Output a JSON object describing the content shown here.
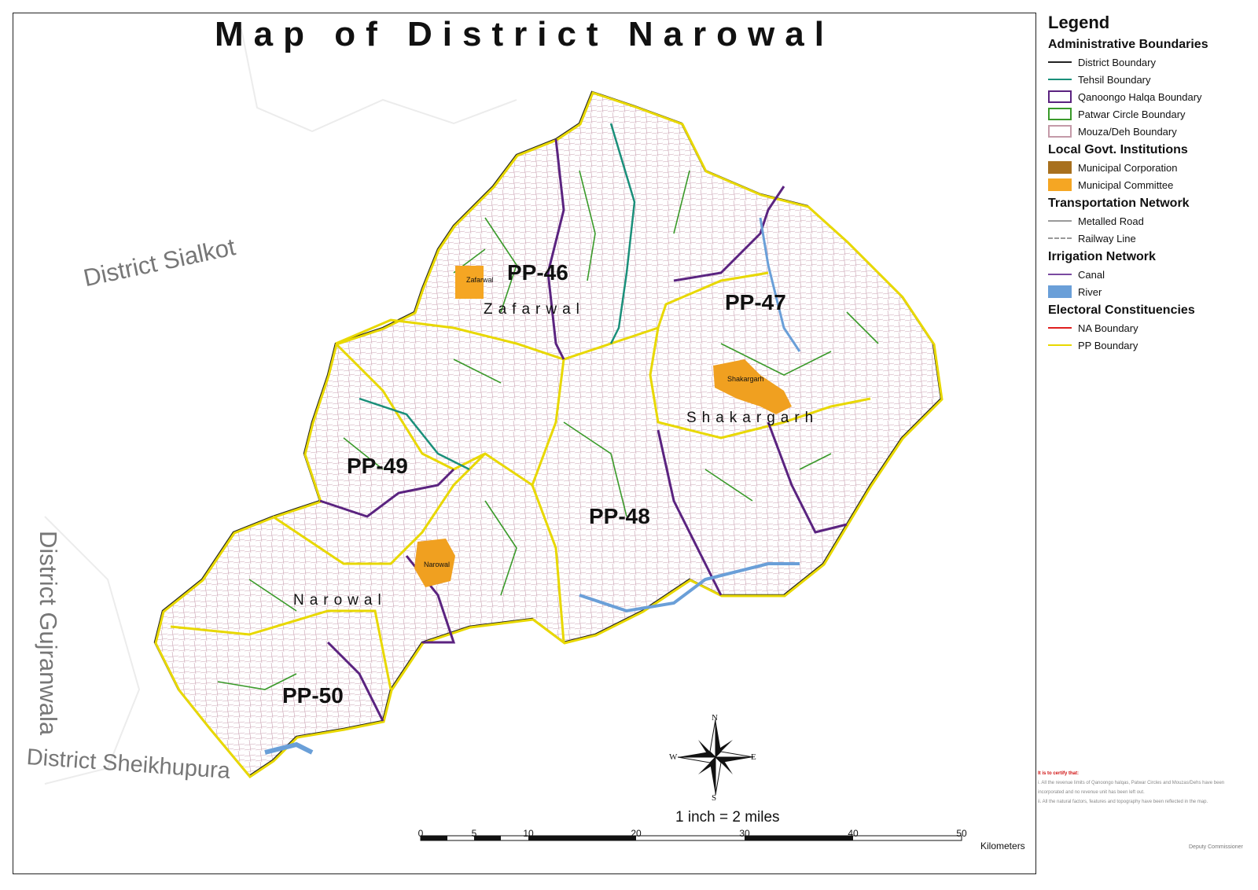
{
  "map": {
    "title": "Map of District Narowal",
    "neighbor_districts": [
      "District Sialkot",
      "District Gujranwala",
      "District Sheikhupura"
    ],
    "constituencies": [
      "PP-46",
      "PP-47",
      "PP-48",
      "PP-49",
      "PP-50"
    ],
    "tehsils": [
      "Zafarwal",
      "Shakargarh",
      "Narowal"
    ],
    "towns": [
      "Zafarwal",
      "Shakargarh",
      "Narowal"
    ],
    "scale_text": "1 inch = 2 miles",
    "scale_ticks": [
      "0",
      "5",
      "10",
      "20",
      "30",
      "40",
      "50"
    ],
    "scale_unit": "Kilometers",
    "compass": {
      "n": "N",
      "s": "S",
      "e": "E",
      "w": "W"
    }
  },
  "legend": {
    "title": "Legend",
    "sections": [
      {
        "heading": "Administrative Boundaries",
        "items": [
          {
            "label": "District Boundary",
            "symbol": "line",
            "color": "#222222"
          },
          {
            "label": "Tehsil Boundary",
            "symbol": "line",
            "color": "#1a8f7a"
          },
          {
            "label": "Qanoongo Halqa Boundary",
            "symbol": "box",
            "color": "#5b2380"
          },
          {
            "label": "Patwar Circle Boundary",
            "symbol": "box",
            "color": "#3a9a2a"
          },
          {
            "label": "Mouza/Deh Boundary",
            "symbol": "box",
            "color": "#c49aa8"
          }
        ]
      },
      {
        "heading": "Local Govt. Institutions",
        "items": [
          {
            "label": "Municipal Corporation",
            "symbol": "fill",
            "color": "#a8701e"
          },
          {
            "label": "Municipal Committee",
            "symbol": "fill",
            "color": "#f5a623"
          }
        ]
      },
      {
        "heading": "Transportation Network",
        "items": [
          {
            "label": "Metalled Road",
            "symbol": "line",
            "color": "#999999"
          },
          {
            "label": "Railway Line",
            "symbol": "dash",
            "color": "#999999"
          }
        ]
      },
      {
        "heading": "Irrigation Network",
        "items": [
          {
            "label": "Canal",
            "symbol": "line",
            "color": "#7a4aa0"
          },
          {
            "label": "River",
            "symbol": "fill",
            "color": "#6a9fd8"
          }
        ]
      },
      {
        "heading": "Electoral Constituencies",
        "items": [
          {
            "label": "NA Boundary",
            "symbol": "line",
            "color": "#e02020"
          },
          {
            "label": "PP Boundary",
            "symbol": "line",
            "color": "#e8d800"
          }
        ]
      }
    ]
  },
  "certification": {
    "title": "It is to certify that:",
    "lines": [
      "i.  All the revenue limits of Qanoongo halqas, Patwar Circles and Mouzas/Dehs have been incorporated and no revenue unit has been left out.",
      "ii. All the natural factors, features and topography have been reflected in the map."
    ],
    "signatory": "Deputy Commissioner"
  }
}
